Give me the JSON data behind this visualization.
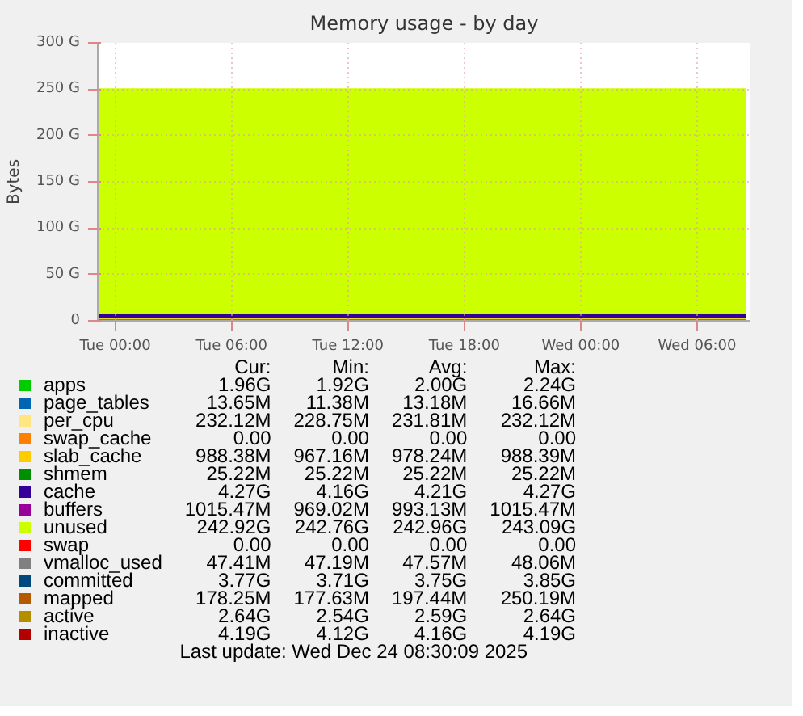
{
  "chart_data": {
    "type": "area",
    "title": "Memory usage - by day",
    "ylabel": "Bytes",
    "stacked": true,
    "grid": true,
    "legend": "bottom",
    "xlim": [
      "2025-12-22T23:06",
      "2025-12-24T08:45"
    ],
    "xticks": [
      {
        "value": "2025-12-23T00:00",
        "label": "Tue 00:00"
      },
      {
        "value": "2025-12-23T06:00",
        "label": "Tue 06:00"
      },
      {
        "value": "2025-12-23T12:00",
        "label": "Tue 12:00"
      },
      {
        "value": "2025-12-23T18:00",
        "label": "Tue 18:00"
      },
      {
        "value": "2025-12-24T00:00",
        "label": "Wed 00:00"
      },
      {
        "value": "2025-12-24T06:00",
        "label": "Wed 06:00"
      }
    ],
    "ylim": [
      0,
      300
    ],
    "yticks": [
      0,
      {
        "value": 50,
        "label": "50 G"
      },
      {
        "value": 100,
        "label": "100 G"
      },
      {
        "value": 150,
        "label": "150 G"
      },
      {
        "value": 200,
        "label": "200 G"
      },
      {
        "value": 250,
        "label": "250 G"
      },
      {
        "value": 300,
        "label": "300 G"
      }
    ],
    "x": [
      "2025-12-22T23:06",
      "2025-12-24T08:30"
    ],
    "series": [
      {
        "name": "apps",
        "color": "#00cc00",
        "values": [
          2,
          2
        ]
      },
      {
        "name": "page_tables",
        "color": "#0066b3",
        "values": [
          null,
          null
        ]
      },
      {
        "name": "per_cpu",
        "color": "#ffe680",
        "values": [
          null,
          null
        ]
      },
      {
        "name": "swap_cache",
        "color": "#ff8000",
        "values": [
          null,
          null
        ]
      },
      {
        "name": "slab_cache",
        "color": "#ffcc00",
        "values": [
          1,
          1
        ]
      },
      {
        "name": "shmem",
        "color": "#008f00",
        "values": [
          null,
          null
        ]
      },
      {
        "name": "cache",
        "color": "#330099",
        "values": [
          4,
          4
        ]
      },
      {
        "name": "buffers",
        "color": "#990099",
        "values": [
          1,
          1
        ]
      },
      {
        "name": "unused",
        "color": "#ccff00",
        "values": [
          243,
          243
        ]
      },
      {
        "name": "swap",
        "color": "#ff0000",
        "values": [
          null,
          null
        ]
      },
      {
        "name": "vmalloc_used",
        "color": "#808080",
        "values": [
          null,
          null
        ]
      },
      {
        "name": "committed",
        "color": "#00487d",
        "values": [
          null,
          null
        ]
      },
      {
        "name": "mapped",
        "color": "#b35a00",
        "values": [
          null,
          null
        ]
      },
      {
        "name": "active",
        "color": "#b38f00",
        "values": [
          null,
          null
        ]
      },
      {
        "name": "inactive",
        "color": "#b30000",
        "values": [
          null,
          null
        ]
      }
    ],
    "annotations": [
      "Cur:",
      "Min:",
      "Avg:",
      "Max:",
      "1.96G",
      "1.92G",
      "2.00G",
      "2.24G",
      "13.65M",
      "11.38M",
      "13.18M",
      "16.66M",
      "232.12M",
      "228.75M",
      "231.81M",
      "232.12M",
      "0.00",
      "0.00",
      "0.00",
      "0.00",
      "988.38M",
      "967.16M",
      "978.24M",
      "988.39M",
      "25.22M",
      "25.22M",
      "25.22M",
      "25.22M",
      "4.27G",
      "4.16G",
      "4.21G",
      "4.27G",
      "1015.47M",
      "969.02M",
      "993.13M",
      "1015.47M",
      "242.92G",
      "242.76G",
      "242.96G",
      "243.09G",
      "0.00",
      "0.00",
      "0.00",
      "0.00",
      "47.41M",
      "47.19M",
      "47.57M",
      "48.06M",
      "3.77G",
      "3.71G",
      "3.75G",
      "3.85G",
      "178.25M",
      "177.63M",
      "197.44M",
      "250.19M",
      "2.64G",
      "2.54G",
      "2.59G",
      "2.64G",
      "4.19G",
      "4.12G",
      "4.16G",
      "4.19G",
      "Last update: Wed Dec 24 08:30:09 2025"
    ]
  }
}
